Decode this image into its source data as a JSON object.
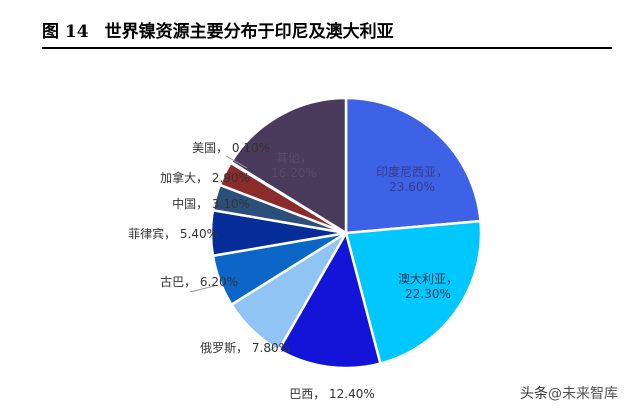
{
  "figure": {
    "number": "图 14",
    "title": "世界镍资源主要分布于印尼及澳大利亚"
  },
  "watermark": {
    "brand": "头条",
    "handle": "@未来智库"
  },
  "chart_data": {
    "type": "pie",
    "title": "",
    "slices": [
      {
        "label": "印度尼西亚",
        "value": 23.6,
        "display": "23.60%",
        "color": "#3d62e6"
      },
      {
        "label": "澳大利亚",
        "value": 22.3,
        "display": "22.30%",
        "color": "#00c8ff"
      },
      {
        "label": "巴西",
        "value": 12.4,
        "display": "12.40%",
        "color": "#1414d8"
      },
      {
        "label": "俄罗斯",
        "value": 7.8,
        "display": "7.80%",
        "color": "#8fc4f5"
      },
      {
        "label": "古巴",
        "value": 6.2,
        "display": "6.20%",
        "color": "#0c66c8"
      },
      {
        "label": "菲律宾",
        "value": 5.4,
        "display": "5.40%",
        "color": "#062c9a"
      },
      {
        "label": "中国",
        "value": 3.1,
        "display": "3.10%",
        "color": "#2c4f7a"
      },
      {
        "label": "加拿大",
        "value": 2.9,
        "display": "2.90%",
        "color": "#8b2b2b"
      },
      {
        "label": "美国",
        "value": 0.1,
        "display": "0.10%",
        "color": "#c09090"
      },
      {
        "label": "其他",
        "value": 16.2,
        "display": "16.20%",
        "color": "#4a3a5c"
      }
    ]
  }
}
